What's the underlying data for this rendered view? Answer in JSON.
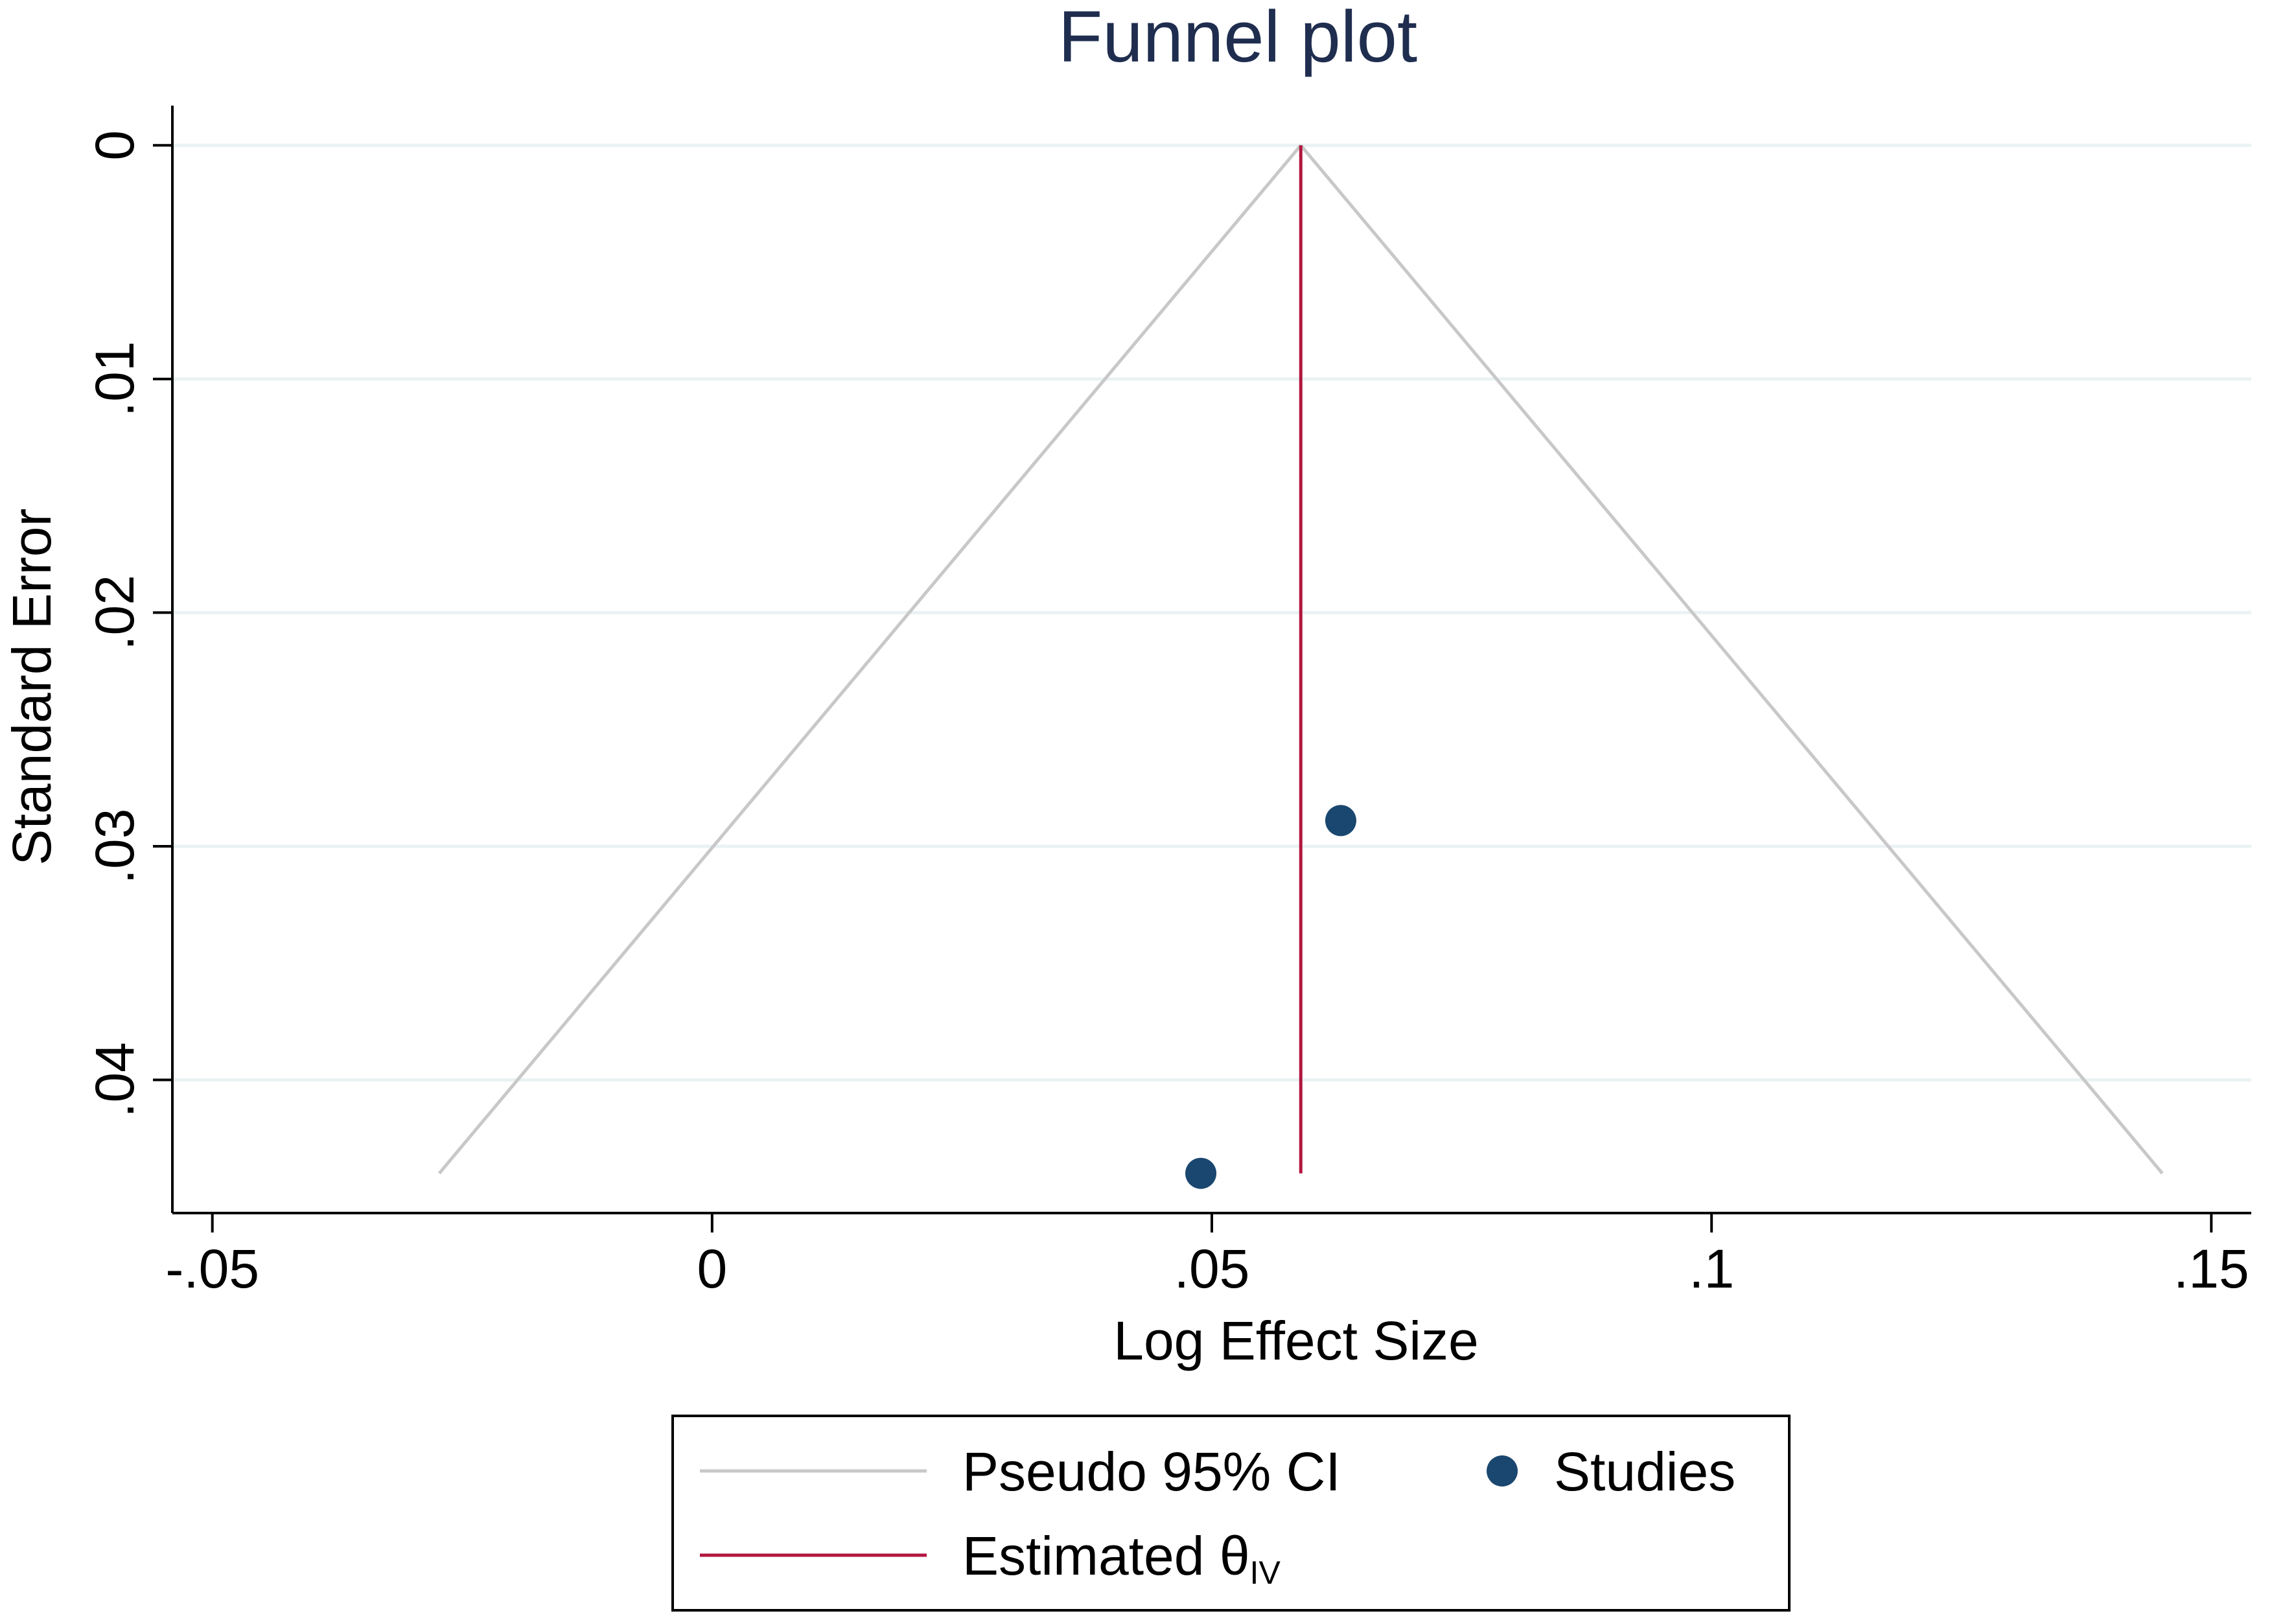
{
  "chart_data": {
    "type": "scatter",
    "title": "Funnel plot",
    "xlabel": "Log Effect Size",
    "ylabel": "Standard Error",
    "xlim": [
      -0.054,
      0.154
    ],
    "ylim": [
      -0.0017,
      0.0457
    ],
    "y_reversed": true,
    "grid": true,
    "x_ticks": [
      {
        "value": -0.05,
        "label": "-.05"
      },
      {
        "value": 0,
        "label": "0"
      },
      {
        "value": 0.05,
        "label": ".05"
      },
      {
        "value": 0.1,
        "label": ".1"
      },
      {
        "value": 0.15,
        "label": ".15"
      }
    ],
    "y_ticks": [
      {
        "value": 0,
        "label": "0"
      },
      {
        "value": 0.01,
        "label": ".01"
      },
      {
        "value": 0.02,
        "label": ".02"
      },
      {
        "value": 0.03,
        "label": ".03"
      },
      {
        "value": 0.04,
        "label": ".04"
      }
    ],
    "estimate": 0.0589,
    "se_max": 0.044,
    "ci_left": [
      {
        "x": 0.0589,
        "y": 0
      },
      {
        "x": -0.0273,
        "y": 0.044
      }
    ],
    "ci_right": [
      {
        "x": 0.0589,
        "y": 0
      },
      {
        "x": 0.1451,
        "y": 0.044
      }
    ],
    "series": [
      {
        "name": "Studies",
        "points": [
          {
            "x": 0.0629,
            "y": 0.0289
          },
          {
            "x": 0.0489,
            "y": 0.044
          }
        ]
      }
    ],
    "legend": {
      "position": "bottom",
      "entries": [
        {
          "label": "Pseudo 95% CI",
          "type": "line"
        },
        {
          "label": "Studies",
          "type": "marker"
        },
        {
          "label": "Estimated θ",
          "subscript": "IV",
          "type": "line"
        }
      ]
    },
    "colors": {
      "ci_line": "#c8c8c8",
      "estimate_line": "#b2163f",
      "points": "#1a476f",
      "grid": "#eaf2f3",
      "title": "#1f2d4f"
    }
  }
}
